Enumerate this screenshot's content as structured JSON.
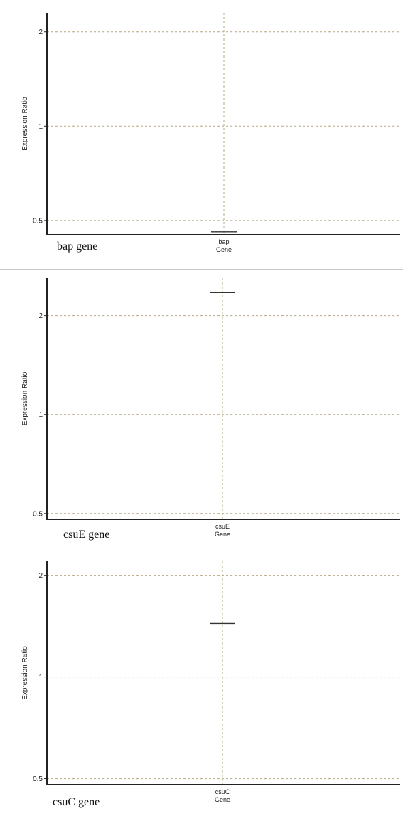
{
  "colors": {
    "grid": "#b5a882",
    "axis": "#222222",
    "marker": "#333333",
    "caption": "#111111"
  },
  "chart_data": [
    {
      "type": "scatter",
      "ylabel": "Expression Ratio",
      "xlabel": "Gene",
      "yscale": "log",
      "ylim": [
        0.45,
        2.3
      ],
      "yticks": [
        {
          "value": 0.5,
          "label": "0.5"
        },
        {
          "value": 1,
          "label": "1"
        },
        {
          "value": 2,
          "label": "2"
        }
      ],
      "categories": [
        "bap"
      ],
      "values": [
        0.46
      ],
      "grid": true,
      "caption": "bap gene"
    },
    {
      "type": "scatter",
      "ylabel": "Expression Ratio",
      "xlabel": "Gene",
      "yscale": "log",
      "ylim": [
        0.48,
        2.6
      ],
      "yticks": [
        {
          "value": 0.5,
          "label": "0.5"
        },
        {
          "value": 1,
          "label": "1"
        },
        {
          "value": 2,
          "label": "2"
        }
      ],
      "categories": [
        "csuE"
      ],
      "values": [
        2.35
      ],
      "grid": true,
      "caption": "csuE gene"
    },
    {
      "type": "scatter",
      "ylabel": "Expression Ratio",
      "xlabel": "Gene",
      "yscale": "log",
      "ylim": [
        0.48,
        2.2
      ],
      "yticks": [
        {
          "value": 0.5,
          "label": "0.5"
        },
        {
          "value": 1,
          "label": "1"
        },
        {
          "value": 2,
          "label": "2"
        }
      ],
      "categories": [
        "csuC"
      ],
      "values": [
        1.44
      ],
      "grid": true,
      "caption": "csuC gene"
    }
  ]
}
